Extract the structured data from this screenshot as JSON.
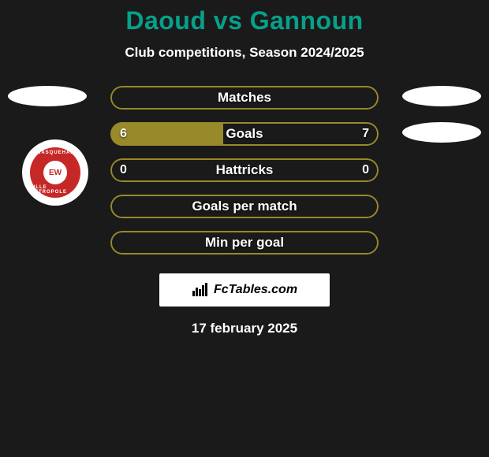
{
  "title_color": "#07a089",
  "title": "Daoud vs Gannoun",
  "subtitle": "Club competitions, Season 2024/2025",
  "datestamp": "17 february 2025",
  "brand": "FcTables.com",
  "colors": {
    "background": "#1a1a1a",
    "sidecap": "#ffffff",
    "text": "#ffffff",
    "bar_border": "#98892a",
    "bar_fill": "#98892a",
    "crest_outer": "#ffffff",
    "crest_inner": "#c62828"
  },
  "crest": {
    "top_text": "WASQUEHAL",
    "center_text": "EW",
    "bottom_text": "LILLE METROPOLE"
  },
  "rows": [
    {
      "label": "Matches",
      "left_value": "",
      "right_value": "",
      "left_pct": 0,
      "right_pct": 0,
      "show_left_cap": true,
      "show_right_cap": true
    },
    {
      "label": "Goals",
      "left_value": "6",
      "right_value": "7",
      "left_pct": 42,
      "right_pct": 0,
      "show_left_cap": false,
      "show_right_cap": true
    },
    {
      "label": "Hattricks",
      "left_value": "0",
      "right_value": "0",
      "left_pct": 0,
      "right_pct": 0,
      "show_left_cap": false,
      "show_right_cap": false
    },
    {
      "label": "Goals per match",
      "left_value": "",
      "right_value": "",
      "left_pct": 0,
      "right_pct": 0,
      "show_left_cap": false,
      "show_right_cap": false
    },
    {
      "label": "Min per goal",
      "left_value": "",
      "right_value": "",
      "left_pct": 0,
      "right_pct": 0,
      "show_left_cap": false,
      "show_right_cap": false
    }
  ]
}
